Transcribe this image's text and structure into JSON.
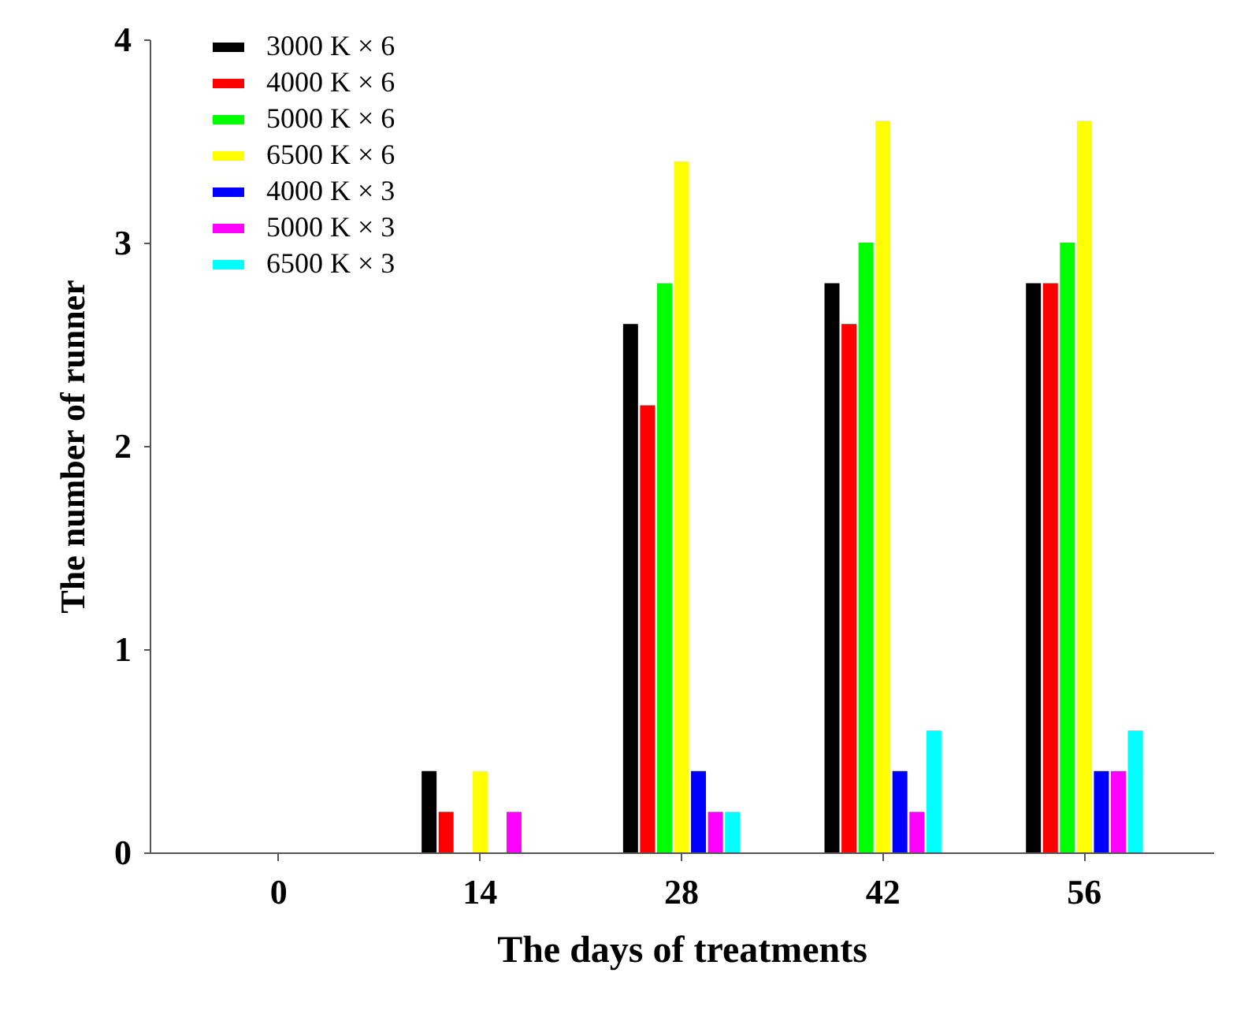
{
  "chart_data": {
    "type": "bar",
    "xlabel": "The days of treatments",
    "ylabel": "The number of runner",
    "categories": [
      "0",
      "14",
      "28",
      "42",
      "56"
    ],
    "series": [
      {
        "name": "3000 K × 6",
        "color": "#000000",
        "values": [
          0,
          0.4,
          2.6,
          2.8,
          2.8
        ]
      },
      {
        "name": "4000 K × 6",
        "color": "#ff0000",
        "values": [
          0,
          0.2,
          2.2,
          2.6,
          2.8
        ]
      },
      {
        "name": "5000 K × 6",
        "color": "#00ff00",
        "values": [
          0,
          0,
          2.8,
          3.0,
          3.0
        ]
      },
      {
        "name": "6500 K × 6",
        "color": "#ffff00",
        "values": [
          0,
          0.4,
          3.4,
          3.6,
          3.6
        ]
      },
      {
        "name": "4000 K × 3",
        "color": "#0000ff",
        "values": [
          0,
          0,
          0.4,
          0.4,
          0.4
        ]
      },
      {
        "name": "5000 K × 3",
        "color": "#ff00ff",
        "values": [
          0,
          0.2,
          0.2,
          0.2,
          0.4
        ]
      },
      {
        "name": "6500 K × 3",
        "color": "#00ffff",
        "values": [
          0,
          0,
          0.2,
          0.6,
          0.6
        ]
      }
    ],
    "ylim": [
      0,
      4
    ],
    "yticks": [
      0,
      1,
      2,
      3,
      4
    ],
    "grid": false,
    "legend": "top left"
  }
}
